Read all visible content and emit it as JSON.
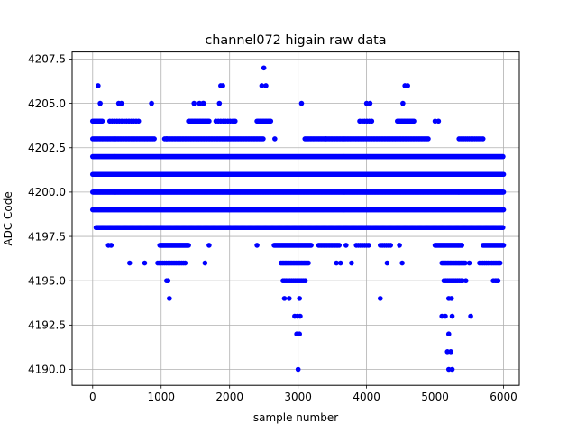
{
  "chart_data": {
    "type": "scatter",
    "title": "channel072 higain raw data",
    "xlabel": "sample number",
    "ylabel": "ADC Code",
    "xlim": [
      -300,
      6230
    ],
    "ylim": [
      4189.1,
      4207.9
    ],
    "xticks": [
      0,
      1000,
      2000,
      3000,
      4000,
      5000,
      6000
    ],
    "xtick_labels": [
      "0",
      "1000",
      "2000",
      "3000",
      "4000",
      "5000",
      "6000"
    ],
    "yticks": [
      4190.0,
      4192.5,
      4195.0,
      4197.5,
      4200.0,
      4202.5,
      4205.0,
      4207.5
    ],
    "ytick_labels": [
      "4190.0",
      "4192.5",
      "4195.0",
      "4197.5",
      "4200.0",
      "4202.5",
      "4205.0",
      "4207.5"
    ],
    "grid": true,
    "marker_color": "#0000ff",
    "segments": [
      {
        "level": 4200,
        "x": [
          0,
          6000
        ],
        "step": 8
      },
      {
        "level": 4201,
        "x": [
          0,
          6000
        ],
        "step": 10
      },
      {
        "level": 4199,
        "x": [
          0,
          6000
        ],
        "step": 12
      },
      {
        "level": 4202,
        "x": [
          0,
          6000
        ],
        "step": 14
      },
      {
        "level": 4198,
        "x": [
          50,
          6000
        ],
        "step": 15
      },
      {
        "level": 4203,
        "x": [
          0,
          900
        ],
        "step": 20
      },
      {
        "level": 4203,
        "x": [
          1050,
          2500
        ],
        "step": 20
      },
      {
        "level": 4203,
        "x": [
          3100,
          4900
        ],
        "step": 20
      },
      {
        "level": 4203,
        "x": [
          5350,
          5700
        ],
        "step": 25
      },
      {
        "level": 4204,
        "x": [
          0,
          150
        ],
        "step": 20
      },
      {
        "level": 4204,
        "x": [
          250,
          700
        ],
        "step": 35
      },
      {
        "level": 4204,
        "x": [
          1400,
          1700
        ],
        "step": 20
      },
      {
        "level": 4204,
        "x": [
          1800,
          2100
        ],
        "step": 35
      },
      {
        "level": 4204,
        "x": [
          2400,
          2600
        ],
        "step": 20
      },
      {
        "level": 4204,
        "x": [
          3900,
          4100
        ],
        "step": 35
      },
      {
        "level": 4204,
        "x": [
          4450,
          4700
        ],
        "step": 20
      },
      {
        "level": 4197,
        "x": [
          980,
          1400
        ],
        "step": 12
      },
      {
        "level": 4197,
        "x": [
          2650,
          3200
        ],
        "step": 15
      },
      {
        "level": 4197,
        "x": [
          3300,
          3600
        ],
        "step": 20
      },
      {
        "level": 4197,
        "x": [
          3850,
          4050
        ],
        "step": 30
      },
      {
        "level": 4197,
        "x": [
          4200,
          4350
        ],
        "step": 30
      },
      {
        "level": 4197,
        "x": [
          5000,
          5400
        ],
        "step": 15
      },
      {
        "level": 4197,
        "x": [
          5700,
          6000
        ],
        "step": 15
      },
      {
        "level": 4196,
        "x": [
          950,
          1350
        ],
        "step": 25
      },
      {
        "level": 4196,
        "x": [
          2750,
          3150
        ],
        "step": 20
      },
      {
        "level": 4196,
        "x": [
          5100,
          5450
        ],
        "step": 20
      },
      {
        "level": 4196,
        "x": [
          5650,
          5950
        ],
        "step": 25
      },
      {
        "level": 4195,
        "x": [
          2780,
          3120
        ],
        "step": 25
      },
      {
        "level": 4195,
        "x": [
          5130,
          5400
        ],
        "step": 25
      },
      {
        "level": 4195,
        "x": [
          5880,
          5950
        ],
        "step": 40
      }
    ],
    "points": [
      [
        80,
        4206
      ],
      [
        110,
        4205
      ],
      [
        380,
        4205
      ],
      [
        420,
        4205
      ],
      [
        860,
        4205
      ],
      [
        1480,
        4205
      ],
      [
        1560,
        4205
      ],
      [
        1610,
        4205
      ],
      [
        1620,
        4205
      ],
      [
        1870,
        4206
      ],
      [
        1900,
        4206
      ],
      [
        1850,
        4205
      ],
      [
        2470,
        4206
      ],
      [
        2530,
        4206
      ],
      [
        2500,
        4207
      ],
      [
        3050,
        4205
      ],
      [
        4000,
        4205
      ],
      [
        4050,
        4205
      ],
      [
        4560,
        4206
      ],
      [
        4600,
        4206
      ],
      [
        4530,
        4205
      ],
      [
        5000,
        4204
      ],
      [
        5050,
        4204
      ],
      [
        230,
        4197
      ],
      [
        270,
        4197
      ],
      [
        540,
        4196
      ],
      [
        760,
        4196
      ],
      [
        1640,
        4196
      ],
      [
        1700,
        4197
      ],
      [
        2400,
        4197
      ],
      [
        4520,
        4196
      ],
      [
        1080,
        4195
      ],
      [
        1100,
        4195
      ],
      [
        1120,
        4194
      ],
      [
        2800,
        4194
      ],
      [
        2870,
        4194
      ],
      [
        3020,
        4194
      ],
      [
        4200,
        4194
      ],
      [
        5200,
        4194
      ],
      [
        5240,
        4194
      ],
      [
        5400,
        4195
      ],
      [
        5450,
        4195
      ],
      [
        2950,
        4193
      ],
      [
        2990,
        4193
      ],
      [
        3030,
        4193
      ],
      [
        2980,
        4192
      ],
      [
        3020,
        4192
      ],
      [
        3000,
        4190
      ],
      [
        5100,
        4193
      ],
      [
        5150,
        4193
      ],
      [
        5250,
        4193
      ],
      [
        5200,
        4192
      ],
      [
        5180,
        4191
      ],
      [
        5230,
        4191
      ],
      [
        5200,
        4190
      ],
      [
        5250,
        4190
      ],
      [
        5520,
        4193
      ],
      [
        5500,
        4196
      ],
      [
        5850,
        4195
      ],
      [
        5900,
        4195
      ],
      [
        3400,
        4203
      ],
      [
        3700,
        4197
      ],
      [
        4480,
        4197
      ],
      [
        1080,
        4203
      ],
      [
        2660,
        4203
      ],
      [
        3780,
        4196
      ],
      [
        4300,
        4196
      ],
      [
        3560,
        4196
      ],
      [
        3620,
        4196
      ]
    ]
  }
}
